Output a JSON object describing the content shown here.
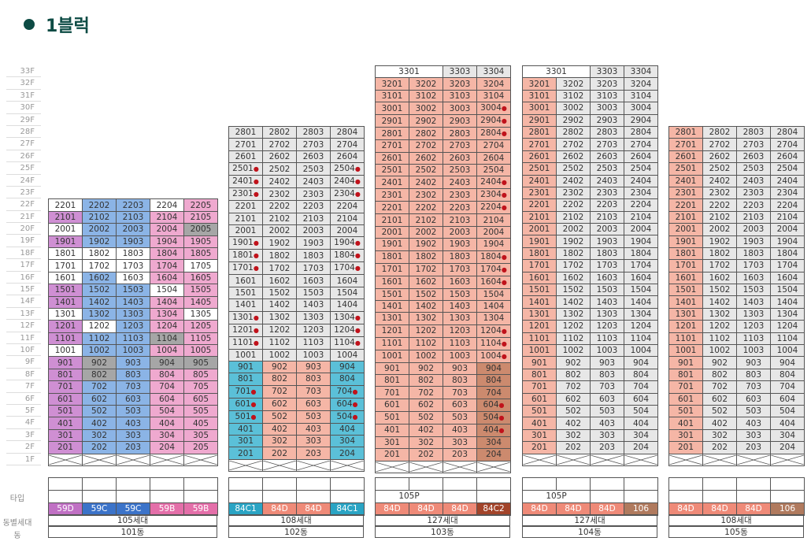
{
  "title": "1블럭",
  "floor_labels": [
    "33F",
    "32F",
    "31F",
    "30F",
    "29F",
    "28F",
    "27F",
    "26F",
    "25F",
    "24F",
    "23F",
    "22F",
    "21F",
    "20F",
    "19F",
    "18F",
    "17F",
    "16F",
    "15F",
    "14F",
    "13F",
    "12F",
    "11F",
    "10F",
    "9F",
    "8F",
    "7F",
    "6F",
    "5F",
    "4F",
    "3F",
    "2F",
    "1F"
  ],
  "row_labels": {
    "type": "타입",
    "households": "동별세대",
    "building": "동"
  },
  "colors": {
    "pink": "#efa9cf",
    "blue": "#8bb4e6",
    "purple": "#cf8fd3",
    "gray_dark": "#a6a6a6",
    "cyan": "#5bc0d8",
    "salmon": "#f5b6a6",
    "brown": "#cc8a6e",
    "light_gray": "#e7e7e7",
    "dot": "#c0121b"
  },
  "buildings": [
    {
      "id": "101",
      "name": "101동",
      "households": "105세대",
      "top_floor": 22,
      "cols": 5,
      "types": [
        {
          "label": "59D",
          "color": "#c070c4"
        },
        {
          "label": "59C",
          "color": "#3b73c9"
        },
        {
          "label": "59C",
          "color": "#3b73c9"
        },
        {
          "label": "59B",
          "color": "#e46fa9"
        },
        {
          "label": "59B",
          "color": "#e46fa9"
        }
      ],
      "extra_row": [
        "",
        "",
        "",
        "",
        ""
      ]
    },
    {
      "id": "102",
      "name": "102동",
      "households": "108세대",
      "top_floor": 28,
      "cols": 4,
      "types": [
        {
          "label": "84C1",
          "color": "#2aa4c4"
        },
        {
          "label": "84D",
          "color": "#ef8a78"
        },
        {
          "label": "84D",
          "color": "#ef8a78"
        },
        {
          "label": "84C1",
          "color": "#2aa4c4"
        }
      ],
      "extra_row": [
        "",
        "",
        "",
        ""
      ]
    },
    {
      "id": "103",
      "name": "103동",
      "households": "127세대",
      "top_floor": 33,
      "cols": 4,
      "types": [
        {
          "label": "84D",
          "color": "#ef8a78"
        },
        {
          "label": "84D",
          "color": "#ef8a78"
        },
        {
          "label": "84D",
          "color": "#ef8a78"
        },
        {
          "label": "84C2",
          "color": "#a2442a"
        }
      ],
      "extra_row": [
        "105P"
      ]
    },
    {
      "id": "104",
      "name": "104동",
      "households": "127세대",
      "top_floor": 33,
      "cols": 4,
      "types": [
        {
          "label": "84D",
          "color": "#ef8a78"
        },
        {
          "label": "84D",
          "color": "#ef8a78"
        },
        {
          "label": "84D",
          "color": "#ef8a78"
        },
        {
          "label": "106",
          "color": "#b07a5e"
        }
      ],
      "extra_row": [
        "105P"
      ]
    },
    {
      "id": "105",
      "name": "105동",
      "households": "108세대",
      "top_floor": 28,
      "cols": 4,
      "types": [
        {
          "label": "84D",
          "color": "#ef8a78"
        },
        {
          "label": "84D",
          "color": "#ef8a78"
        },
        {
          "label": "84D",
          "color": "#ef8a78"
        },
        {
          "label": "106",
          "color": "#b07a5e"
        }
      ],
      "extra_row": [
        "",
        "",
        "",
        ""
      ]
    }
  ],
  "penthouse_labels": {
    "103": [
      "3301",
      "3303",
      "3304"
    ],
    "104": [
      "3301",
      "3303",
      "3304"
    ]
  }
}
